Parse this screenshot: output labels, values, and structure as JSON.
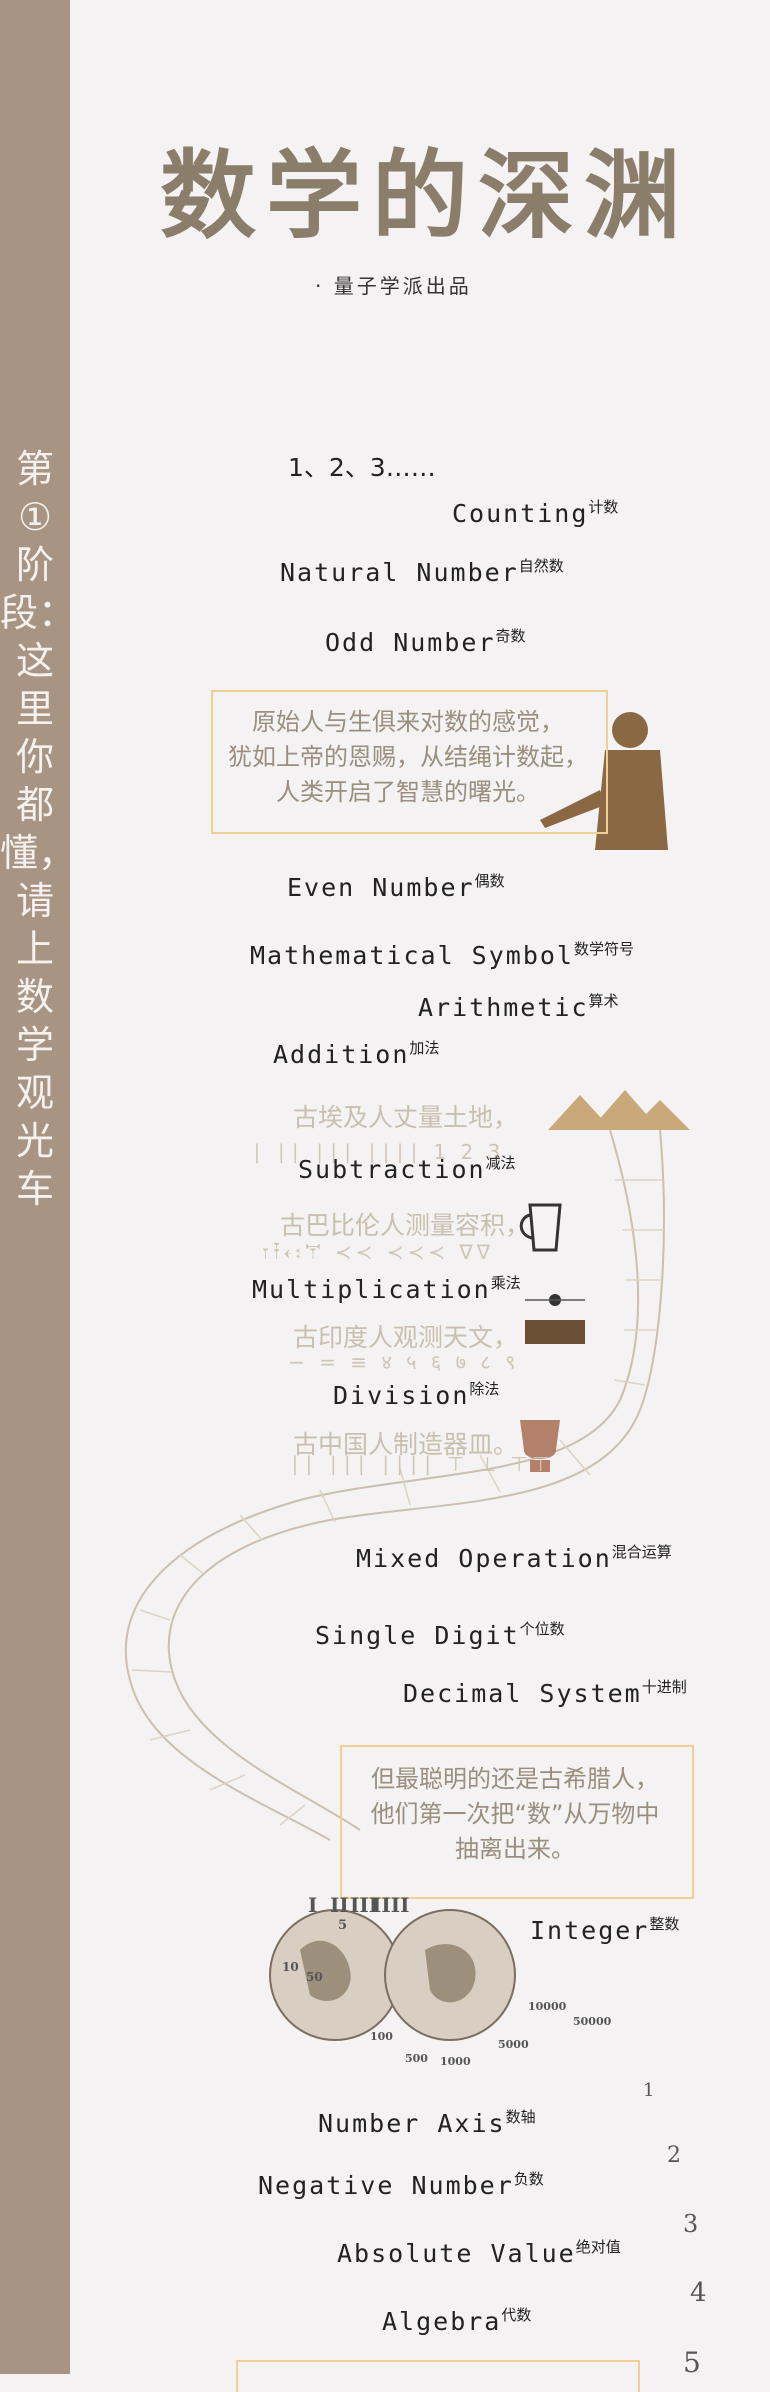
{
  "sidebar": {
    "text": "第①阶段：这里你都懂，请上数学观光车"
  },
  "header": {
    "title": "数学的深渊",
    "subtitle": "· 量子学派出品"
  },
  "sequence": "1、2、3……",
  "terms": [
    {
      "en": "Counting",
      "zh": "计数"
    },
    {
      "en": "Natural Number",
      "zh": "自然数"
    },
    {
      "en": "Odd Number",
      "zh": "奇数"
    },
    {
      "en": "Even Number",
      "zh": "偶数"
    },
    {
      "en": "Mathematical Symbol",
      "zh": "数学符号"
    },
    {
      "en": "Arithmetic",
      "zh": "算术"
    },
    {
      "en": "Addition",
      "zh": "加法"
    },
    {
      "en": "Subtraction",
      "zh": "减法"
    },
    {
      "en": "Multiplication",
      "zh": "乘法"
    },
    {
      "en": "Division",
      "zh": "除法"
    },
    {
      "en": "Mixed Operation",
      "zh": "混合运算"
    },
    {
      "en": "Single Digit",
      "zh": "个位数"
    },
    {
      "en": "Decimal System",
      "zh": "十进制"
    },
    {
      "en": "Integer",
      "zh": "整数"
    },
    {
      "en": "Number Axis",
      "zh": "数轴"
    },
    {
      "en": "Negative Number",
      "zh": "负数"
    },
    {
      "en": "Absolute Value",
      "zh": "绝对值"
    },
    {
      "en": "Algebra",
      "zh": "代数"
    }
  ],
  "box1": {
    "lines": [
      "原始人与生俱来对数的感觉，",
      "犹如上帝的恩赐，从结绳计数起，",
      "人类开启了智慧的曙光。"
    ]
  },
  "box2": {
    "lines": [
      "但最聪明的还是古希腊人，",
      "他们第一次把“数”从万物中",
      "抽离出来。"
    ]
  },
  "history": [
    "古埃及人丈量土地，",
    "古巴比伦人测量容积，",
    "古印度人观测天文，",
    "古中国人制造器皿。"
  ],
  "numerals": [
    "I",
    "II",
    "III",
    "IIII",
    "5",
    "10",
    "50",
    "100",
    "500",
    "1000",
    "5000",
    "10000",
    "50000"
  ],
  "axis_numbers": [
    "1",
    "2",
    "3",
    "4",
    "5"
  ]
}
